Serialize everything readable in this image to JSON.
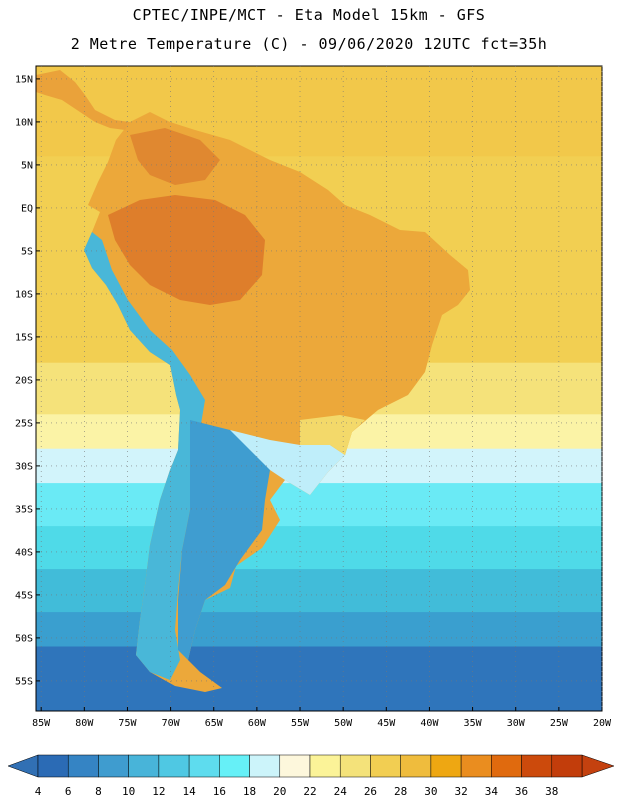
{
  "titles": {
    "line1": "CPTEC/INPE/MCT -  Eta Model 15km - GFS",
    "line2": "2 Metre Temperature (C) - 09/06/2020 12UTC fct=35h"
  },
  "map": {
    "lat_labels": [
      "15N",
      "10N",
      "5N",
      "EQ",
      "5S",
      "10S",
      "15S",
      "20S",
      "25S",
      "30S",
      "35S",
      "40S",
      "45S",
      "50S",
      "55S"
    ],
    "lon_labels": [
      "85W",
      "80W",
      "75W",
      "70W",
      "65W",
      "60W",
      "55W",
      "50W",
      "45W",
      "40W",
      "35W",
      "30W",
      "25W",
      "20W"
    ],
    "lat_values": [
      15,
      10,
      5,
      0,
      -5,
      -10,
      -15,
      -20,
      -25,
      -30,
      -35,
      -40,
      -45,
      -50,
      -55
    ],
    "lon_values": [
      -85,
      -80,
      -75,
      -70,
      -65,
      -60,
      -55,
      -50,
      -45,
      -40,
      -35,
      -30,
      -25,
      -20
    ],
    "lat_range": [
      -58.5,
      16.5
    ],
    "lon_range": [
      -85.6,
      -20.0
    ],
    "ocean_bands": [
      {
        "lat_top": 16.5,
        "lat_bottom": 6,
        "temp": 28,
        "color": "#f2c84a"
      },
      {
        "lat_top": 6,
        "lat_bottom": -18,
        "temp": 27,
        "color": "#f2cf52"
      },
      {
        "lat_top": -18,
        "lat_bottom": -24,
        "temp": 25,
        "color": "#f5e27a"
      },
      {
        "lat_top": -24,
        "lat_bottom": -28,
        "temp": 23,
        "color": "#fbf3a6"
      },
      {
        "lat_top": -28,
        "lat_bottom": -32,
        "temp": 20,
        "color": "#d2f4fb"
      },
      {
        "lat_top": -32,
        "lat_bottom": -37,
        "temp": 17,
        "color": "#6aeaf5"
      },
      {
        "lat_top": -37,
        "lat_bottom": -42,
        "temp": 15,
        "color": "#4fdae8"
      },
      {
        "lat_top": -42,
        "lat_bottom": -47,
        "temp": 12,
        "color": "#41bcd9"
      },
      {
        "lat_top": -47,
        "lat_bottom": -51,
        "temp": 9,
        "color": "#3a9fcf"
      },
      {
        "lat_top": -51,
        "lat_bottom": -58.5,
        "temp": 6,
        "color": "#2f75bb"
      }
    ]
  },
  "colorbar": {
    "labels": [
      "4",
      "6",
      "8",
      "10",
      "12",
      "14",
      "16",
      "18",
      "20",
      "22",
      "24",
      "26",
      "28",
      "30",
      "32",
      "34",
      "36",
      "38"
    ],
    "colors": [
      "#2b6bb5",
      "#3584c4",
      "#3f9ccf",
      "#48b4d9",
      "#4fc8e3",
      "#5edcee",
      "#66f0f7",
      "#ccf4fa",
      "#fdf7dc",
      "#fbf398",
      "#f4e27a",
      "#f2ce52",
      "#efbc3d",
      "#eea712",
      "#ea8d1f",
      "#e06a0e",
      "#cc4a0c",
      "#c23d0b"
    ],
    "low_color": "#3170b4",
    "high_color": "#c4410f"
  }
}
